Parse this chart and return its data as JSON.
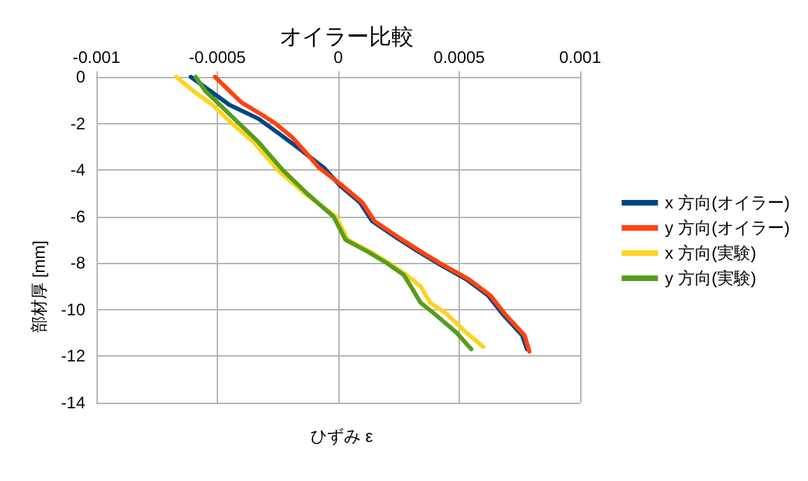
{
  "chart_data": {
    "type": "line",
    "title": "オイラー比較",
    "xlabel": "ひずみ ε",
    "ylabel": "部材厚 [mm]",
    "xlim": [
      -0.001,
      0.001
    ],
    "xticks": [
      -0.001,
      -0.0005,
      0,
      0.0005,
      0.001
    ],
    "ylim": [
      -14,
      0
    ],
    "yticks": [
      -14,
      -12,
      -10,
      -8,
      -6,
      -4,
      -2,
      0
    ],
    "grid": true,
    "legend": "right",
    "marker": "none",
    "line_style": "solid",
    "series": [
      {
        "name": "x 方向(オイラー)",
        "color": "#004586",
        "x": [
          -0.00061,
          -0.00053,
          -0.00045,
          -0.00033,
          -0.00025,
          -0.00016,
          -6e-05,
          1e-05,
          9e-05,
          0.00014,
          0.00024,
          0.00033,
          0.00041,
          0.00053,
          0.00062,
          0.00068,
          0.00076,
          0.00078
        ],
        "values": [
          0,
          -0.6,
          -1.2,
          -1.8,
          -2.4,
          -3.1,
          -3.9,
          -4.7,
          -5.4,
          -6.2,
          -6.9,
          -7.5,
          -8.0,
          -8.7,
          -9.4,
          -10.2,
          -11.1,
          -11.7
        ]
      },
      {
        "name": "y 方向(オイラー)",
        "color": "#ff420e",
        "x": [
          -0.00051,
          -0.00045,
          -0.0004,
          -0.00032,
          -0.00026,
          -0.00019,
          -0.00013,
          -8e-05,
          2e-05,
          0.0001,
          0.00015,
          0.00025,
          0.00034,
          0.00042,
          0.00054,
          0.00063,
          0.00069,
          0.00077,
          0.00079
        ],
        "values": [
          0,
          -0.6,
          -1.1,
          -1.6,
          -2.0,
          -2.6,
          -3.3,
          -3.9,
          -4.7,
          -5.4,
          -6.2,
          -6.9,
          -7.5,
          -8.0,
          -8.7,
          -9.4,
          -10.2,
          -11.1,
          -11.8
        ]
      },
      {
        "name": "x 方向(実験)",
        "color": "#ffd320",
        "x": [
          -0.00067,
          -0.0006,
          -0.00052,
          -0.00044,
          -0.00035,
          -0.00025,
          -0.00014,
          -1e-05,
          4e-05,
          0.00013,
          0.00021,
          0.00028,
          0.00034,
          0.00038,
          0.00045,
          0.00053,
          0.0006
        ],
        "values": [
          0,
          -0.6,
          -1.2,
          -2.0,
          -2.8,
          -4.0,
          -5.0,
          -6.0,
          -7.0,
          -7.5,
          -8.0,
          -8.5,
          -9.0,
          -9.7,
          -10.2,
          -11.0,
          -11.6
        ]
      },
      {
        "name": "y 方向(実験)",
        "color": "#579d1c",
        "x": [
          -0.00059,
          -0.00055,
          -0.00049,
          -0.00041,
          -0.00033,
          -0.00023,
          -0.00013,
          -2e-05,
          3e-05,
          0.00012,
          0.0002,
          0.00027,
          0.0003,
          0.00034,
          0.0004,
          0.00049,
          0.00055
        ],
        "values": [
          0,
          -0.6,
          -1.2,
          -2.0,
          -2.8,
          -4.0,
          -5.0,
          -6.0,
          -7.0,
          -7.5,
          -8.0,
          -8.5,
          -9.0,
          -9.7,
          -10.2,
          -11.0,
          -11.7
        ]
      }
    ]
  }
}
